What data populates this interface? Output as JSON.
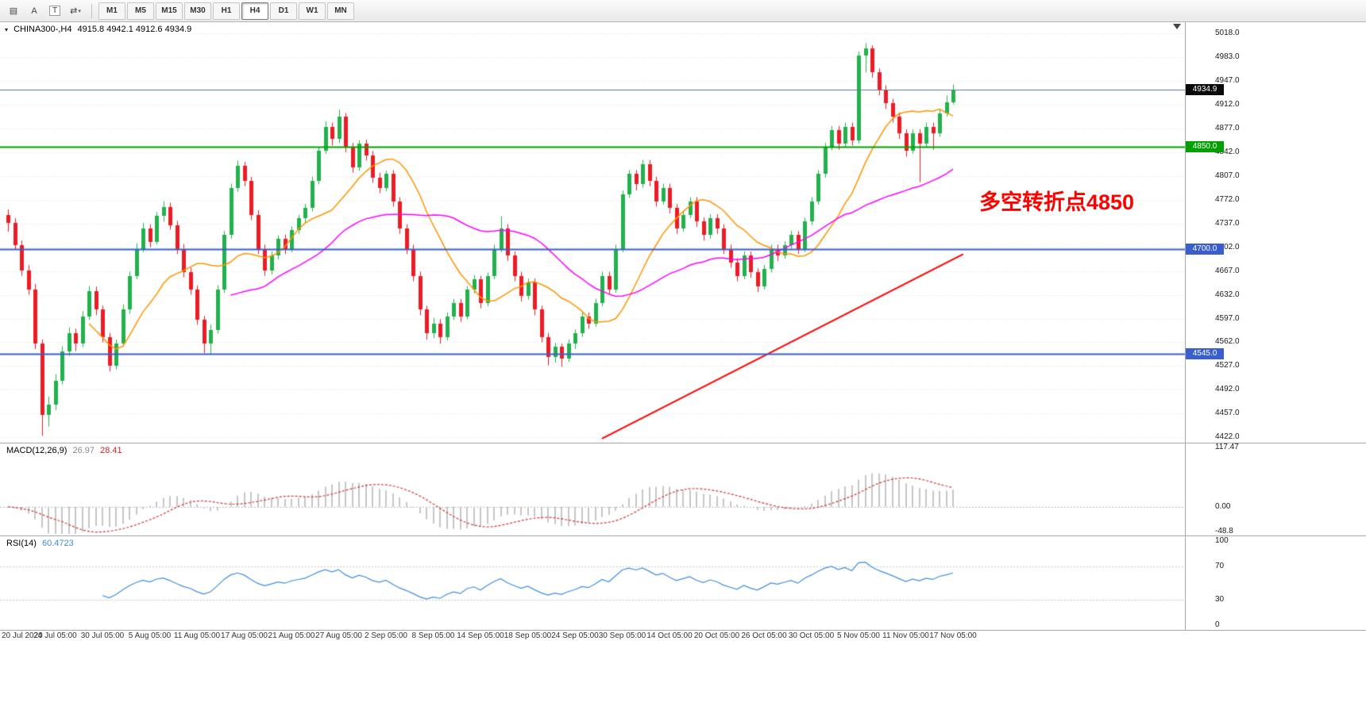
{
  "toolbar": {
    "tools": [
      {
        "name": "market-watch-icon",
        "glyph": "▤"
      },
      {
        "name": "crosshair-a-tool",
        "glyph": "A"
      },
      {
        "name": "text-label-tool",
        "glyph": "T",
        "boxed": true
      },
      {
        "name": "cycle-symbols-tool",
        "glyph": "⇄",
        "caret": "▾"
      }
    ],
    "timeframes": [
      "M1",
      "M5",
      "M15",
      "M30",
      "H1",
      "H4",
      "D1",
      "W1",
      "MN"
    ],
    "active": "H4"
  },
  "chart": {
    "marker_glyph": "▾",
    "title": "CHINA300-,H4",
    "ohlc_text": "4915.8 4942.1 4912.6 4934.9",
    "annotation": {
      "text": "多空转折点4850",
      "color": "#ff0000"
    }
  },
  "indicators": {
    "macd": {
      "label": "MACD(12,26,9)",
      "main_value": "26.97",
      "signal_value": "28.41",
      "params": [
        12,
        26,
        9
      ],
      "range": {
        "max": 117.47,
        "min": -48.8
      },
      "axis_labels": [
        {
          "v": 117.47,
          "t": "117.47"
        },
        {
          "v": 0,
          "t": "0.00"
        },
        {
          "v": -48.8,
          "t": "-48.8"
        }
      ]
    },
    "rsi": {
      "label": "RSI(14)",
      "value": "60.4723",
      "period": 14,
      "levels": [
        70,
        30
      ],
      "axis_labels": [
        {
          "v": 100,
          "t": "100"
        },
        {
          "v": 70,
          "t": "70"
        },
        {
          "v": 30,
          "t": "30"
        },
        {
          "v": 0,
          "t": "0"
        }
      ]
    }
  },
  "chart_data": {
    "type": "candlestick",
    "symbol": "CHINA300-",
    "timeframe": "H4",
    "current_price": 4934.9,
    "label_step": 7,
    "price_axis": [
      "5018.0",
      "4983.0",
      "4947.0",
      "4912.0",
      "4877.0",
      "4842.0",
      "4807.0",
      "4772.0",
      "4737.0",
      "4702.0",
      "4667.0",
      "4632.0",
      "4597.0",
      "4562.0",
      "4527.0",
      "4492.0",
      "4457.0",
      "4422.0"
    ],
    "time_axis": [
      "20 Jul 2020",
      "24 Jul 05:00",
      "30 Jul 05:00",
      "5 Aug 05:00",
      "11 Aug 05:00",
      "17 Aug 05:00",
      "21 Aug 05:00",
      "27 Aug 05:00",
      "2 Sep 05:00",
      "8 Sep 05:00",
      "14 Sep 05:00",
      "18 Sep 05:00",
      "24 Sep 05:00",
      "30 Sep 05:00",
      "14 Oct 05:00",
      "20 Oct 05:00",
      "26 Oct 05:00",
      "30 Oct 05:00",
      "5 Nov 05:00",
      "11 Nov 05:00",
      "17 Nov 05:00"
    ],
    "hlines": [
      {
        "price": 4934.9,
        "label": "4934.9",
        "line": "#5f7a8a",
        "badge": "#0a0a0a",
        "width": 1
      },
      {
        "price": 4850,
        "label": "4850.0",
        "line": "#00a000",
        "badge": "#00a000",
        "width": 2
      },
      {
        "price": 4700,
        "label": "4700.0",
        "line": "#3a5fcd",
        "badge": "#3a5fcd",
        "width": 2
      },
      {
        "price": 4545,
        "label": "4545.0",
        "line": "#3a5fcd",
        "badge": "#3a5fcd",
        "width": 2
      }
    ],
    "trendline": {
      "i1": 88,
      "p1": 4420,
      "i2": 141.5,
      "p2": 4692,
      "color": "#ff0000",
      "width": 2
    },
    "overlays": [
      {
        "name": "ma-fast",
        "period": 13,
        "color": "#ff9500"
      },
      {
        "name": "ma-slow",
        "period": 34,
        "color": "#ff00ff"
      }
    ],
    "colors": {
      "up": "#22b14c",
      "down": "#ed1c24",
      "grid": "#e0e0e0",
      "macd_hist": "#c6c6c6",
      "macd_signal": "#d23434",
      "rsi_line": "#3f8ede",
      "levels": "#c9c9c9"
    },
    "candles": [
      [
        4750,
        4758,
        4725,
        4738
      ],
      [
        4738,
        4745,
        4698,
        4705
      ],
      [
        4705,
        4712,
        4660,
        4668
      ],
      [
        4668,
        4676,
        4632,
        4640
      ],
      [
        4640,
        4648,
        4552,
        4560
      ],
      [
        4560,
        4566,
        4424,
        4455
      ],
      [
        4455,
        4482,
        4438,
        4470
      ],
      [
        4470,
        4515,
        4462,
        4505
      ],
      [
        4505,
        4556,
        4500,
        4548
      ],
      [
        4548,
        4584,
        4542,
        4575
      ],
      [
        4575,
        4582,
        4549,
        4560
      ],
      [
        4560,
        4608,
        4555,
        4600
      ],
      [
        4600,
        4645,
        4595,
        4638
      ],
      [
        4638,
        4644,
        4602,
        4610
      ],
      [
        4610,
        4616,
        4562,
        4570
      ],
      [
        4570,
        4576,
        4519,
        4528
      ],
      [
        4528,
        4566,
        4522,
        4560
      ],
      [
        4560,
        4618,
        4556,
        4610
      ],
      [
        4610,
        4666,
        4604,
        4660
      ],
      [
        4660,
        4708,
        4655,
        4700
      ],
      [
        4700,
        4738,
        4695,
        4730
      ],
      [
        4730,
        4736,
        4702,
        4710
      ],
      [
        4710,
        4754,
        4706,
        4748
      ],
      [
        4748,
        4770,
        4740,
        4762
      ],
      [
        4762,
        4768,
        4728,
        4735
      ],
      [
        4735,
        4741,
        4692,
        4700
      ],
      [
        4700,
        4707,
        4658,
        4665
      ],
      [
        4665,
        4672,
        4632,
        4640
      ],
      [
        4640,
        4646,
        4588,
        4595
      ],
      [
        4595,
        4601,
        4546,
        4560
      ],
      [
        4560,
        4588,
        4545,
        4580
      ],
      [
        4580,
        4646,
        4575,
        4640
      ],
      [
        4640,
        4726,
        4635,
        4720
      ],
      [
        4720,
        4796,
        4715,
        4790
      ],
      [
        4790,
        4830,
        4784,
        4822
      ],
      [
        4822,
        4828,
        4792,
        4800
      ],
      [
        4800,
        4806,
        4742,
        4750
      ],
      [
        4750,
        4757,
        4692,
        4700
      ],
      [
        4700,
        4706,
        4660,
        4668
      ],
      [
        4668,
        4696,
        4662,
        4690
      ],
      [
        4690,
        4720,
        4684,
        4715
      ],
      [
        4715,
        4721,
        4692,
        4700
      ],
      [
        4700,
        4733,
        4695,
        4728
      ],
      [
        4728,
        4750,
        4722,
        4745
      ],
      [
        4745,
        4766,
        4738,
        4760
      ],
      [
        4760,
        4806,
        4755,
        4800
      ],
      [
        4800,
        4850,
        4795,
        4845
      ],
      [
        4845,
        4888,
        4840,
        4880
      ],
      [
        4880,
        4886,
        4852,
        4862
      ],
      [
        4862,
        4905,
        4856,
        4895
      ],
      [
        4895,
        4900,
        4842,
        4850
      ],
      [
        4850,
        4856,
        4812,
        4820
      ],
      [
        4820,
        4860,
        4815,
        4855
      ],
      [
        4855,
        4861,
        4830,
        4838
      ],
      [
        4838,
        4844,
        4797,
        4805
      ],
      [
        4805,
        4812,
        4782,
        4790
      ],
      [
        4790,
        4815,
        4785,
        4810
      ],
      [
        4810,
        4816,
        4762,
        4770
      ],
      [
        4770,
        4776,
        4722,
        4730
      ],
      [
        4730,
        4736,
        4692,
        4700
      ],
      [
        4700,
        4706,
        4652,
        4660
      ],
      [
        4660,
        4666,
        4602,
        4610
      ],
      [
        4610,
        4616,
        4566,
        4575
      ],
      [
        4575,
        4598,
        4568,
        4590
      ],
      [
        4590,
        4596,
        4560,
        4570
      ],
      [
        4570,
        4606,
        4565,
        4600
      ],
      [
        4600,
        4626,
        4595,
        4620
      ],
      [
        4620,
        4626,
        4592,
        4600
      ],
      [
        4600,
        4645,
        4596,
        4640
      ],
      [
        4640,
        4661,
        4634,
        4655
      ],
      [
        4655,
        4660,
        4612,
        4620
      ],
      [
        4620,
        4665,
        4615,
        4660
      ],
      [
        4660,
        4706,
        4655,
        4700
      ],
      [
        4700,
        4748,
        4695,
        4730
      ],
      [
        4730,
        4736,
        4682,
        4690
      ],
      [
        4690,
        4696,
        4652,
        4660
      ],
      [
        4660,
        4666,
        4622,
        4630
      ],
      [
        4630,
        4656,
        4625,
        4650
      ],
      [
        4650,
        4656,
        4602,
        4610
      ],
      [
        4610,
        4616,
        4562,
        4570
      ],
      [
        4570,
        4576,
        4528,
        4540
      ],
      [
        4540,
        4561,
        4532,
        4555
      ],
      [
        4555,
        4560,
        4526,
        4538
      ],
      [
        4538,
        4566,
        4533,
        4560
      ],
      [
        4560,
        4581,
        4552,
        4575
      ],
      [
        4575,
        4606,
        4570,
        4600
      ],
      [
        4600,
        4606,
        4582,
        4590
      ],
      [
        4590,
        4626,
        4585,
        4620
      ],
      [
        4620,
        4666,
        4615,
        4660
      ],
      [
        4660,
        4666,
        4632,
        4640
      ],
      [
        4640,
        4706,
        4635,
        4700
      ],
      [
        4700,
        4786,
        4695,
        4780
      ],
      [
        4780,
        4816,
        4775,
        4810
      ],
      [
        4810,
        4816,
        4786,
        4795
      ],
      [
        4795,
        4831,
        4790,
        4825
      ],
      [
        4825,
        4831,
        4792,
        4800
      ],
      [
        4800,
        4806,
        4762,
        4770
      ],
      [
        4770,
        4796,
        4765,
        4790
      ],
      [
        4790,
        4796,
        4752,
        4760
      ],
      [
        4760,
        4766,
        4722,
        4730
      ],
      [
        4730,
        4756,
        4725,
        4750
      ],
      [
        4750,
        4776,
        4745,
        4770
      ],
      [
        4770,
        4776,
        4732,
        4740
      ],
      [
        4740,
        4746,
        4712,
        4720
      ],
      [
        4720,
        4751,
        4715,
        4745
      ],
      [
        4745,
        4751,
        4722,
        4730
      ],
      [
        4730,
        4736,
        4692,
        4700
      ],
      [
        4700,
        4706,
        4672,
        4680
      ],
      [
        4680,
        4686,
        4652,
        4660
      ],
      [
        4660,
        4696,
        4655,
        4690
      ],
      [
        4690,
        4696,
        4657,
        4665
      ],
      [
        4665,
        4671,
        4636,
        4645
      ],
      [
        4645,
        4676,
        4640,
        4670
      ],
      [
        4670,
        4706,
        4665,
        4700
      ],
      [
        4700,
        4706,
        4682,
        4690
      ],
      [
        4690,
        4711,
        4685,
        4705
      ],
      [
        4705,
        4726,
        4700,
        4720
      ],
      [
        4720,
        4726,
        4692,
        4700
      ],
      [
        4700,
        4746,
        4695,
        4740
      ],
      [
        4740,
        4776,
        4735,
        4770
      ],
      [
        4770,
        4816,
        4765,
        4810
      ],
      [
        4810,
        4856,
        4805,
        4850
      ],
      [
        4850,
        4881,
        4845,
        4875
      ],
      [
        4875,
        4881,
        4846,
        4855
      ],
      [
        4855,
        4886,
        4850,
        4880
      ],
      [
        4880,
        4886,
        4852,
        4860
      ],
      [
        4860,
        4991,
        4855,
        4985
      ],
      [
        4985,
        5003,
        4960,
        4995
      ],
      [
        4995,
        5000,
        4952,
        4960
      ],
      [
        4960,
        4966,
        4926,
        4935
      ],
      [
        4935,
        4941,
        4906,
        4915
      ],
      [
        4915,
        4921,
        4886,
        4895
      ],
      [
        4895,
        4901,
        4862,
        4870
      ],
      [
        4870,
        4876,
        4836,
        4845
      ],
      [
        4845,
        4876,
        4840,
        4870
      ],
      [
        4870,
        4876,
        4798,
        4855
      ],
      [
        4855,
        4886,
        4850,
        4880
      ],
      [
        4880,
        4886,
        4846,
        4870
      ],
      [
        4870,
        4906,
        4865,
        4900
      ],
      [
        4900,
        4926,
        4895,
        4915.8
      ],
      [
        4915.8,
        4942.1,
        4912.6,
        4934.9
      ]
    ]
  }
}
